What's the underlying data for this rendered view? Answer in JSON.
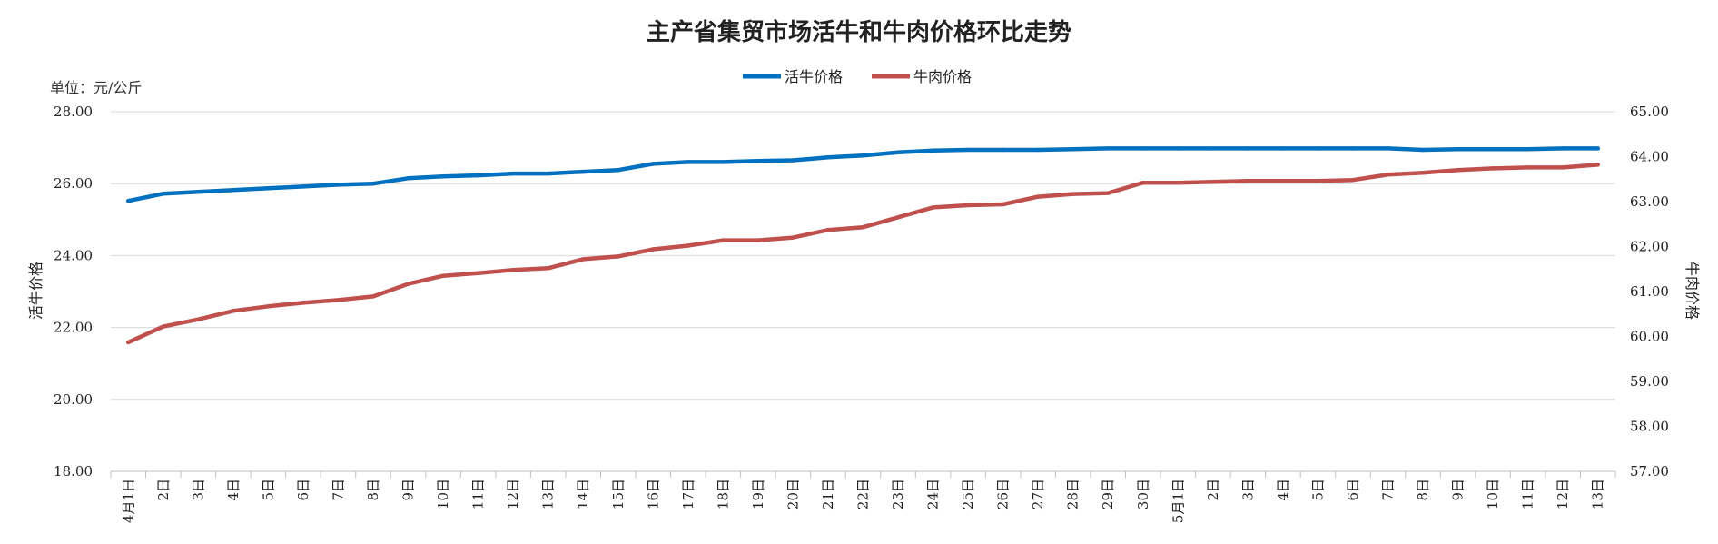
{
  "chart_data": {
    "type": "line",
    "title": "主产省集贸市场活牛和牛肉价格环比走势",
    "unit_label": "单位：元/公斤",
    "ylabel_left": "活牛价格",
    "ylabel_right": "牛肉价格",
    "ylim_left": [
      18.0,
      28.0
    ],
    "ylim_right": [
      57.0,
      65.0
    ],
    "yticks_left": [
      "18.00",
      "20.00",
      "22.00",
      "24.00",
      "26.00",
      "28.00"
    ],
    "yticks_right": [
      "57.00",
      "58.00",
      "59.00",
      "60.00",
      "61.00",
      "62.00",
      "63.00",
      "64.00",
      "65.00"
    ],
    "grid": true,
    "legend_position": "top-center",
    "categories": [
      "4月1日",
      "2日",
      "3日",
      "4日",
      "5日",
      "6日",
      "7日",
      "8日",
      "9日",
      "10日",
      "11日",
      "12日",
      "13日",
      "14日",
      "15日",
      "16日",
      "17日",
      "18日",
      "19日",
      "20日",
      "21日",
      "22日",
      "23日",
      "24日",
      "25日",
      "26日",
      "27日",
      "28日",
      "29日",
      "30日",
      "5月1日",
      "2日",
      "3日",
      "4日",
      "5日",
      "6日",
      "7日",
      "8日",
      "9日",
      "10日",
      "11日",
      "12日",
      "13日"
    ],
    "series": [
      {
        "name": "活牛价格",
        "axis": "left",
        "color": "#0070C0",
        "values": [
          25.52,
          25.72,
          25.77,
          25.82,
          25.87,
          25.92,
          25.97,
          26.0,
          26.15,
          26.2,
          26.23,
          26.28,
          26.28,
          26.33,
          26.38,
          26.55,
          26.6,
          26.6,
          26.63,
          26.65,
          26.73,
          26.78,
          26.87,
          26.92,
          26.94,
          26.94,
          26.94,
          26.96,
          26.98,
          26.98,
          26.98,
          26.98,
          26.98,
          26.98,
          26.98,
          26.98,
          26.98,
          26.94,
          26.96,
          26.96,
          26.96,
          26.98,
          26.98
        ]
      },
      {
        "name": "牛肉价格",
        "axis": "right",
        "color": "#C0504D",
        "values": [
          59.87,
          60.22,
          60.38,
          60.57,
          60.67,
          60.75,
          60.81,
          60.89,
          61.17,
          61.35,
          61.41,
          61.48,
          61.52,
          61.72,
          61.78,
          61.94,
          62.02,
          62.14,
          62.14,
          62.2,
          62.37,
          62.43,
          62.65,
          62.87,
          62.92,
          62.94,
          63.11,
          63.17,
          63.19,
          63.42,
          63.42,
          63.44,
          63.46,
          63.46,
          63.46,
          63.48,
          63.6,
          63.64,
          63.7,
          63.74,
          63.76,
          63.76,
          63.82
        ]
      }
    ]
  }
}
